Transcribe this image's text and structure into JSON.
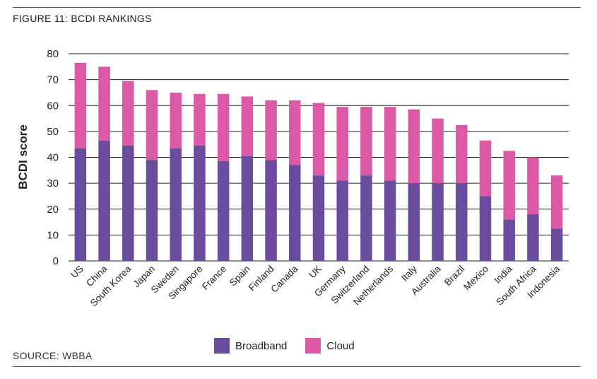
{
  "figure_title": "FIGURE 11: BCDI RANKINGS",
  "source": "SOURCE: WBBA",
  "colors": {
    "broadband": "#6a4c9c",
    "cloud": "#dc5aa5",
    "gridline": "#222222"
  },
  "legend": {
    "broadband_label": "Broadband",
    "cloud_label": "Cloud"
  },
  "chart_data": {
    "type": "bar",
    "stacked": true,
    "title": "",
    "xlabel": "",
    "ylabel": "BCDI score",
    "ylim": [
      0,
      80
    ],
    "yticks": [
      0,
      10,
      20,
      30,
      40,
      50,
      60,
      70,
      80
    ],
    "grid": true,
    "legend_position": "bottom",
    "categories": [
      "US",
      "China",
      "South Korea",
      "Japan",
      "Sweden",
      "Singapore",
      "France",
      "Spain",
      "Finland",
      "Canada",
      "UK",
      "Germany",
      "Switzerland",
      "Netherlands",
      "Italy",
      "Australia",
      "Brazil",
      "Mexico",
      "India",
      "South Africa",
      "Indonesia"
    ],
    "series": [
      {
        "name": "Broadband",
        "values": [
          43.5,
          46.5,
          44.5,
          39,
          43.5,
          44.5,
          38.5,
          40.5,
          39,
          37,
          33,
          31,
          33,
          31,
          30,
          30,
          30,
          25,
          16,
          18,
          12.5
        ]
      },
      {
        "name": "Cloud",
        "values": [
          33,
          28.5,
          25,
          27,
          21.5,
          20,
          26,
          23,
          23,
          25,
          28,
          28.5,
          26.5,
          28.5,
          28.5,
          25,
          22.5,
          21.5,
          26.5,
          22,
          20.5
        ]
      }
    ]
  }
}
